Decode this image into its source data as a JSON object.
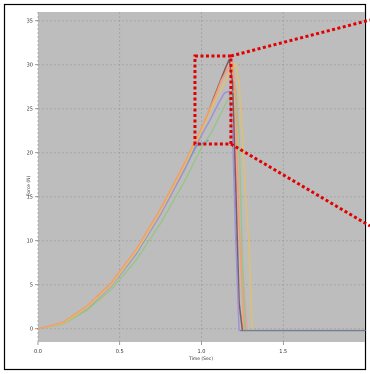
{
  "chart_data": {
    "type": "line",
    "title": "",
    "xlabel": "Time (Sec)",
    "ylabel": "Force (N)",
    "xlim": [
      0,
      2.0
    ],
    "ylim": [
      -1.5,
      36
    ],
    "x_ticks": [
      0.0,
      0.5,
      1.0,
      1.5
    ],
    "x_tick_labels": [
      "0.0",
      "0.5",
      "1.0",
      "1.5"
    ],
    "y_ticks": [
      0,
      5,
      10,
      15,
      20,
      25,
      30,
      35
    ],
    "y_tick_labels": [
      "0",
      "5",
      "10",
      "15",
      "20",
      "25",
      "30",
      "35"
    ],
    "grid": true,
    "legend": "none",
    "zoom_box": {
      "x_range": [
        0.96,
        1.18
      ],
      "y_range": [
        21,
        31
      ]
    },
    "series": [
      {
        "color": "#e8a0a8",
        "x": [
          0,
          0.15,
          0.3,
          0.45,
          0.6,
          0.75,
          0.9,
          1.0,
          1.08,
          1.12,
          1.15,
          1.17,
          1.2,
          1.23,
          1.28
        ],
        "y": [
          0,
          0.7,
          2.5,
          5.2,
          8.9,
          13.4,
          18.7,
          22.6,
          26.1,
          28.0,
          29.3,
          29.8,
          24.0,
          12.0,
          -0.2
        ]
      },
      {
        "color": "#7f5a60",
        "x": [
          0,
          0.15,
          0.3,
          0.45,
          0.6,
          0.75,
          0.9,
          1.0,
          1.08,
          1.12,
          1.15,
          1.17,
          1.19,
          1.21,
          1.23,
          1.25
        ],
        "y": [
          0,
          0.6,
          2.4,
          5.0,
          8.6,
          13.2,
          18.4,
          22.6,
          26.5,
          28.4,
          29.8,
          30.6,
          28.0,
          16.0,
          3.0,
          -0.2
        ]
      },
      {
        "color": "#9b94d6",
        "x": [
          0,
          0.15,
          0.3,
          0.45,
          0.6,
          0.75,
          0.9,
          1.0,
          1.06,
          1.1,
          1.14,
          1.17,
          1.19,
          1.21,
          1.23
        ],
        "y": [
          0,
          0.6,
          2.3,
          4.9,
          8.5,
          13.0,
          18.2,
          22.0,
          24.0,
          25.5,
          26.8,
          27.0,
          22.0,
          10.0,
          -0.2
        ]
      },
      {
        "color": "#6699dd",
        "x": [
          0,
          0.15,
          0.3,
          0.45,
          0.6,
          0.75,
          0.9,
          0.97,
          1.0,
          1.04
        ],
        "y": [
          0,
          0.6,
          2.4,
          5.0,
          8.6,
          13.3,
          18.6,
          20.8,
          21.0,
          21.4
        ]
      },
      {
        "color": "#9ac48a",
        "x": [
          0,
          0.15,
          0.3,
          0.45,
          0.6,
          0.75,
          0.9,
          1.0,
          1.06,
          1.12,
          1.16,
          1.19,
          1.21,
          1.23,
          1.25,
          1.27
        ],
        "y": [
          0,
          0.5,
          2.1,
          4.5,
          7.8,
          12.0,
          16.9,
          20.6,
          22.3,
          24.5,
          26.0,
          26.9,
          27.2,
          22.0,
          8.0,
          -0.2
        ]
      },
      {
        "color": "#e0c070",
        "x": [
          0,
          0.15,
          0.3,
          0.45,
          0.6,
          0.75,
          0.9,
          1.0,
          1.08,
          1.14,
          1.18,
          1.21,
          1.23,
          1.25,
          1.27,
          1.29,
          1.31
        ],
        "y": [
          0,
          0.6,
          2.4,
          5.0,
          8.7,
          13.3,
          18.6,
          22.5,
          25.8,
          28.0,
          29.4,
          30.1,
          28.0,
          22.0,
          15.0,
          10.0,
          -0.2
        ]
      },
      {
        "color": "#f0a070",
        "x": [
          0,
          0.15,
          0.3,
          0.45,
          0.6,
          0.75,
          0.9,
          1.0,
          1.08,
          1.12,
          1.16,
          1.19,
          1.21,
          1.23,
          1.26
        ],
        "y": [
          0,
          0.7,
          2.6,
          5.3,
          9.0,
          13.7,
          19.0,
          22.9,
          26.3,
          28.2,
          29.6,
          30.3,
          26.0,
          12.0,
          -0.2
        ]
      },
      {
        "color": "#708090",
        "x": [
          1.24,
          1.3,
          1.5,
          1.7,
          1.9,
          2.0
        ],
        "y": [
          -0.2,
          -0.2,
          -0.2,
          -0.2,
          -0.2,
          -0.2
        ]
      }
    ]
  }
}
